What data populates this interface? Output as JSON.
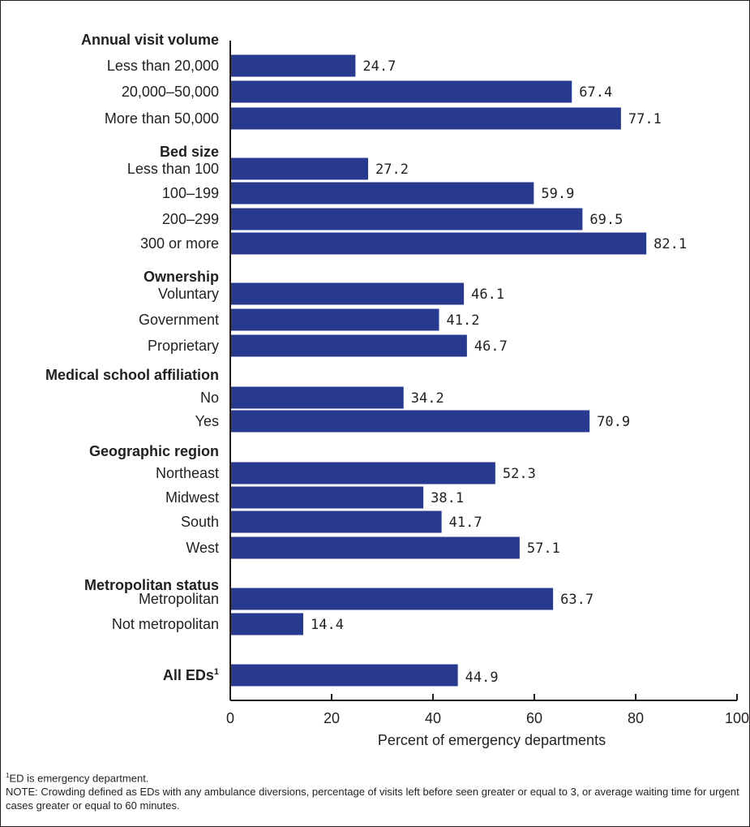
{
  "chart_data": {
    "type": "bar",
    "orientation": "horizontal",
    "xlabel": "Percent of emergency departments",
    "xlim": [
      0,
      100
    ],
    "xticks": [
      "0",
      "20",
      "40",
      "60",
      "80",
      "100"
    ],
    "bar_color": "#283a8f",
    "groups": [
      {
        "label": "Annual visit volume",
        "categories": [
          "Less than 20,000",
          "20,000–50,000",
          "More than 50,000"
        ],
        "values": [
          24.7,
          67.4,
          77.1
        ],
        "value_labels": [
          "24.7",
          "67.4",
          "77.1"
        ]
      },
      {
        "label": "Bed size",
        "categories": [
          "Less than 100",
          "100–199",
          "200–299",
          "300 or more"
        ],
        "values": [
          27.2,
          59.9,
          69.5,
          82.1
        ],
        "value_labels": [
          "27.2",
          "59.9",
          "69.5",
          "82.1"
        ]
      },
      {
        "label": "Ownership",
        "categories": [
          "Voluntary",
          "Government",
          "Proprietary"
        ],
        "values": [
          46.1,
          41.2,
          46.7
        ],
        "value_labels": [
          "46.1",
          "41.2",
          "46.7"
        ]
      },
      {
        "label": "Medical school affiliation",
        "categories": [
          "No",
          "Yes"
        ],
        "values": [
          34.2,
          70.9
        ],
        "value_labels": [
          "34.2",
          "70.9"
        ]
      },
      {
        "label": "Geographic region",
        "categories": [
          "Northeast",
          "Midwest",
          "South",
          "West"
        ],
        "values": [
          52.3,
          38.1,
          41.7,
          57.1
        ],
        "value_labels": [
          "52.3",
          "38.1",
          "41.7",
          "57.1"
        ]
      },
      {
        "label": "Metropolitan status",
        "categories": [
          "Metropolitan",
          "Not metropolitan"
        ],
        "values": [
          63.7,
          14.4
        ],
        "value_labels": [
          "63.7",
          "14.4"
        ]
      },
      {
        "label": "All EDs",
        "label_sup": "1",
        "categories": [
          ""
        ],
        "values": [
          44.9
        ],
        "value_labels": [
          "44.9"
        ]
      }
    ]
  },
  "footnotes": {
    "note1_sup": "1",
    "note1": "ED is emergency department.",
    "note2": "NOTE: Crowding defined as EDs with any ambulance diversions, percentage of visits left before seen greater or equal to 3, or average waiting time for urgent cases greater or equal to 60 minutes."
  }
}
